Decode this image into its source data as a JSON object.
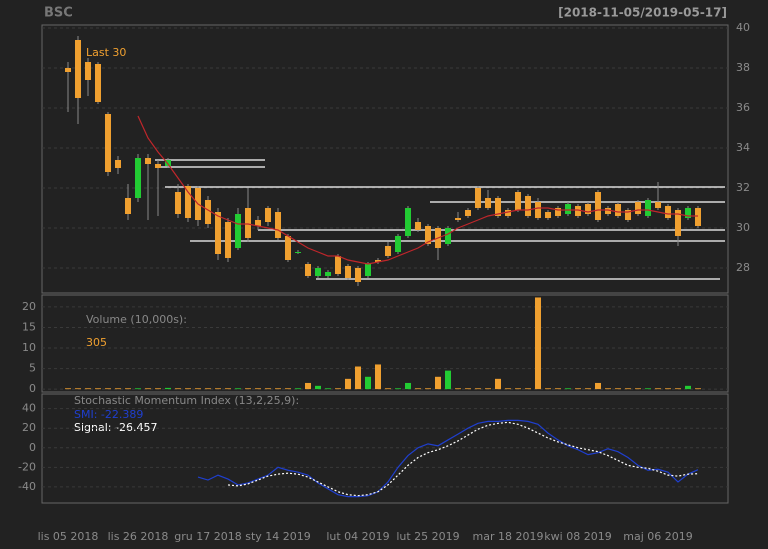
{
  "chart_data": [
    {
      "type": "candlestick",
      "title": "BSC",
      "subtitle": "[2018-11-05/2019-05-17]",
      "annotation": "Last 30",
      "categories": [
        "lis 05 2018",
        null,
        null,
        null,
        null,
        null,
        null,
        "lis 26 2018",
        null,
        null,
        null,
        null,
        null,
        null,
        "gru 17 2018",
        null,
        null,
        null,
        null,
        null,
        null,
        "sty 14 2019",
        null,
        null,
        null,
        null,
        null,
        null,
        null,
        "lut 04 2019",
        null,
        null,
        null,
        null,
        null,
        null,
        "lut 25 2019",
        null,
        null,
        null,
        null,
        null,
        null,
        null,
        "mar 18 2019",
        null,
        null,
        null,
        null,
        null,
        null,
        "kwi 08 2019",
        null,
        null,
        null,
        null,
        null,
        null,
        null,
        "maj 06 2019",
        null,
        null,
        null,
        null
      ],
      "open": [
        38.0,
        39.4,
        38.3,
        38.2,
        35.7,
        33.4,
        31.5,
        31.5,
        33.5,
        33.2,
        33.1,
        31.8,
        32.1,
        32.0,
        31.4,
        30.8,
        30.3,
        29.0,
        31.0,
        30.4,
        31.0,
        30.8,
        29.6,
        28.8,
        28.2,
        27.6,
        27.6,
        28.6,
        28.1,
        28.0,
        27.6,
        28.4,
        29.1,
        28.8,
        29.6,
        30.3,
        30.1,
        30.0,
        29.2,
        30.5,
        30.9,
        32.0,
        31.5,
        31.5,
        30.9,
        31.8,
        31.6,
        31.3,
        30.8,
        31.0,
        30.7,
        31.1,
        31.2,
        31.8,
        31.0,
        31.2,
        30.9,
        31.3,
        30.6,
        31.3,
        31.1,
        30.9,
        30.5,
        31.0
      ],
      "high": [
        38.3,
        39.6,
        38.5,
        38.3,
        35.8,
        33.6,
        32.2,
        33.7,
        33.7,
        33.4,
        33.5,
        32.2,
        32.2,
        32.1,
        31.6,
        31.0,
        30.5,
        31.0,
        32.0,
        30.6,
        31.1,
        31.0,
        29.7,
        28.9,
        28.3,
        28.1,
        27.9,
        28.7,
        28.2,
        28.1,
        28.3,
        28.5,
        29.3,
        29.7,
        31.1,
        30.5,
        30.2,
        30.1,
        30.1,
        30.8,
        31.0,
        32.1,
        31.9,
        31.6,
        31.0,
        31.9,
        31.7,
        31.5,
        30.9,
        31.1,
        31.3,
        31.2,
        31.3,
        31.9,
        31.1,
        31.3,
        31.0,
        31.4,
        31.5,
        32.3,
        31.2,
        31.0,
        31.1,
        31.1
      ],
      "low": [
        35.8,
        35.2,
        36.6,
        36.2,
        32.6,
        32.7,
        30.4,
        31.3,
        30.4,
        30.6,
        33.0,
        30.5,
        30.3,
        30.1,
        30.0,
        28.4,
        28.3,
        28.9,
        29.3,
        29.9,
        30.1,
        29.4,
        28.3,
        28.7,
        27.5,
        27.5,
        27.5,
        27.6,
        27.4,
        27.1,
        27.5,
        28.2,
        28.5,
        28.7,
        29.5,
        29.8,
        29.1,
        28.4,
        29.1,
        30.3,
        30.5,
        30.9,
        30.9,
        30.5,
        30.5,
        30.8,
        30.5,
        30.4,
        30.4,
        30.5,
        30.6,
        30.5,
        30.6,
        30.3,
        30.6,
        30.5,
        30.3,
        30.6,
        30.5,
        30.9,
        30.4,
        29.1,
        30.4,
        30.0
      ],
      "close": [
        37.8,
        36.5,
        37.4,
        36.3,
        32.8,
        33.0,
        30.7,
        33.5,
        33.2,
        33.0,
        33.4,
        30.7,
        30.5,
        30.4,
        30.2,
        28.7,
        28.5,
        30.7,
        29.5,
        30.1,
        30.3,
        29.5,
        28.4,
        28.8,
        27.6,
        28.0,
        27.8,
        27.7,
        27.5,
        27.3,
        28.2,
        28.3,
        28.6,
        29.6,
        31.0,
        29.9,
        29.2,
        29.0,
        30.0,
        30.4,
        30.6,
        31.0,
        31.0,
        30.6,
        30.6,
        30.9,
        30.6,
        30.5,
        30.5,
        30.6,
        31.2,
        30.6,
        30.7,
        30.4,
        30.7,
        30.6,
        30.4,
        30.7,
        31.4,
        31.0,
        30.5,
        29.6,
        31.0,
        30.1
      ],
      "sma": [
        null,
        null,
        null,
        null,
        null,
        null,
        null,
        35.6,
        34.5,
        33.8,
        33.2,
        32.5,
        31.8,
        31.2,
        30.9,
        30.6,
        30.4,
        30.2,
        30.2,
        30.1,
        30.0,
        29.9,
        29.6,
        29.3,
        29.0,
        28.8,
        28.6,
        28.6,
        28.4,
        28.3,
        28.2,
        28.3,
        28.4,
        28.6,
        28.8,
        29.0,
        29.3,
        29.5,
        29.7,
        30.0,
        30.2,
        30.4,
        30.6,
        30.7,
        30.8,
        30.9,
        30.9,
        31.0,
        31.0,
        30.9,
        30.9,
        30.9,
        30.8,
        30.9,
        30.9,
        30.8,
        30.8,
        30.9,
        30.9,
        30.8,
        30.7,
        30.7,
        30.6,
        30.6
      ],
      "sma_color": "#c0262b",
      "up_color": "#22cc33",
      "down_color": "#f0a030",
      "support_lines": [
        {
          "value": 33.4,
          "from": 8.7,
          "to": 19.7
        },
        {
          "value": 33.05,
          "from": 8.7,
          "to": 19.7
        },
        {
          "value": 32.05,
          "from": 9.7,
          "to": 65.7
        },
        {
          "value": 31.3,
          "from": 36.2,
          "to": 65.7
        },
        {
          "value": 29.9,
          "from": 19.0,
          "to": 65.7
        },
        {
          "value": 29.35,
          "from": 12.2,
          "to": 65.7
        },
        {
          "value": 27.45,
          "from": 24.8,
          "to": 65.2
        }
      ],
      "ylim": [
        26.75,
        40.15
      ],
      "yticks": [
        28,
        30,
        32,
        34,
        36,
        38,
        40
      ],
      "grid": true
    },
    {
      "type": "bar",
      "title": "Volume (10,000s):",
      "annotation": "305",
      "values": [
        0.2,
        0.2,
        0.2,
        0.2,
        0.2,
        0.2,
        0.2,
        0.2,
        0.2,
        0.2,
        0.3,
        0.2,
        0.2,
        0.2,
        0.2,
        0.2,
        0.2,
        0.2,
        0.2,
        0.2,
        0.2,
        0.2,
        0.2,
        0.2,
        1.5,
        0.8,
        0.2,
        0.2,
        2.5,
        5.5,
        3,
        6,
        0.2,
        0.2,
        1.5,
        0.2,
        0.2,
        3,
        4.5,
        0.2,
        0.2,
        0.2,
        0.2,
        2.5,
        0.2,
        0.2,
        0.2,
        22.3,
        0.2,
        0.2,
        0.2,
        0.2,
        0.2,
        1.5,
        0.2,
        0.2,
        0.2,
        0.2,
        0.2,
        0.2,
        0.2,
        0.2,
        0.8,
        0.2
      ],
      "ylim": [
        -0.7,
        22.9
      ],
      "yticks": [
        0,
        5,
        10,
        15,
        20
      ],
      "grid": true
    },
    {
      "type": "line",
      "title": "Stochastic Momentum Index (13,2,25,9):",
      "series": [
        {
          "name": "SMI: -22.389",
          "color": "#1f3fcf",
          "dash": false,
          "values": [
            null,
            null,
            null,
            null,
            null,
            null,
            null,
            null,
            null,
            null,
            null,
            null,
            null,
            -30,
            -33,
            -28,
            -32,
            -38,
            -36,
            -32,
            -28,
            -20,
            -23,
            -25,
            -28,
            -36,
            -42,
            -48,
            -50,
            -50,
            -49,
            -45,
            -35,
            -20,
            -8,
            0,
            4,
            2,
            8,
            14,
            20,
            25,
            27,
            27,
            28,
            28,
            27,
            24,
            15,
            8,
            2,
            -2,
            -7,
            -5,
            -1,
            -4,
            -10,
            -18,
            -23,
            -22,
            -25,
            -35,
            -27,
            -22.4
          ]
        },
        {
          "name": "Signal: -26.457",
          "color": "#ffffff",
          "dash": true,
          "values": [
            null,
            null,
            null,
            null,
            null,
            null,
            null,
            null,
            null,
            null,
            null,
            null,
            null,
            null,
            null,
            null,
            -38,
            -39,
            -37,
            -33,
            -29,
            -27,
            -26,
            -27,
            -30,
            -35,
            -40,
            -45,
            -48,
            -49,
            -48,
            -45,
            -38,
            -28,
            -18,
            -10,
            -5,
            -2,
            2,
            7,
            13,
            19,
            23,
            25,
            26,
            24,
            20,
            15,
            10,
            6,
            3,
            0,
            -2,
            -4,
            -8,
            -13,
            -18,
            -20,
            -21,
            -24,
            -28,
            -29,
            -27,
            -26.5
          ]
        }
      ],
      "ylim": [
        -56.5,
        55
      ],
      "yticks": [
        -40,
        -20,
        0,
        20,
        40
      ],
      "grid": true
    }
  ]
}
